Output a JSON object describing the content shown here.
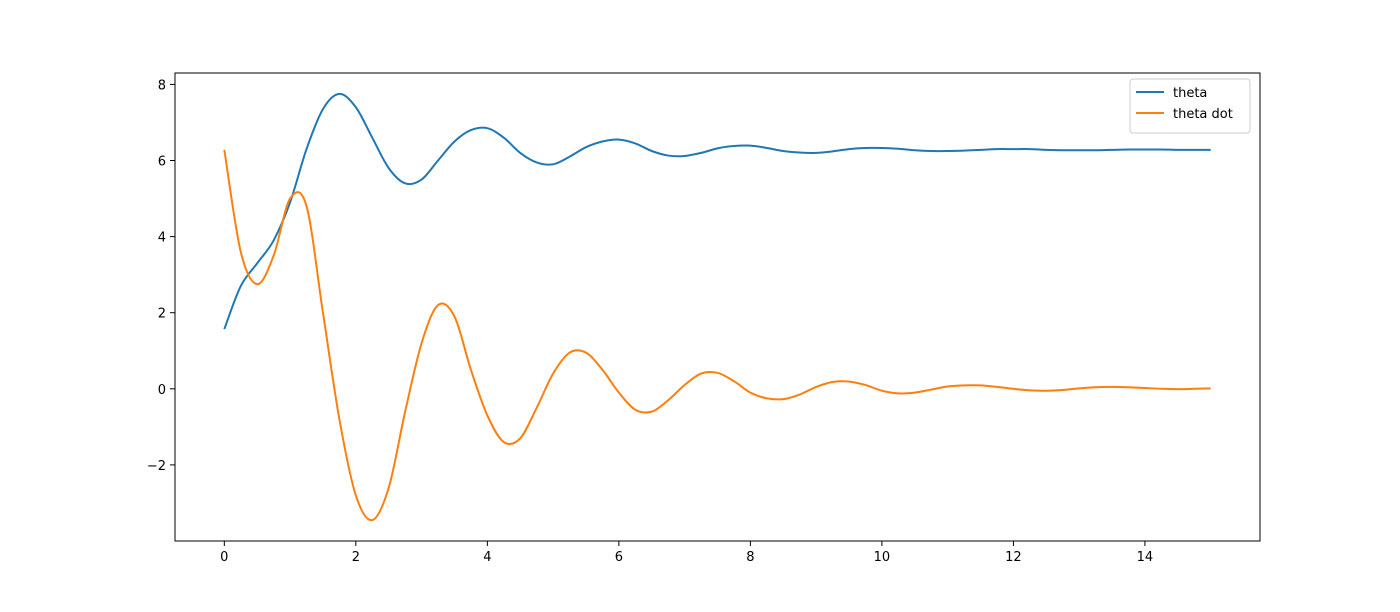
{
  "chart_data": {
    "type": "line",
    "x": [
      0,
      0.25,
      0.5,
      0.75,
      1,
      1.25,
      1.5,
      1.75,
      2,
      2.25,
      2.5,
      2.75,
      3,
      3.25,
      3.5,
      3.75,
      4,
      4.25,
      4.5,
      4.75,
      5,
      5.25,
      5.5,
      5.75,
      6,
      6.25,
      6.5,
      6.75,
      7,
      7.25,
      7.5,
      7.75,
      8,
      8.25,
      8.5,
      8.75,
      9,
      9.25,
      9.5,
      9.75,
      10,
      10.25,
      10.5,
      10.75,
      11,
      11.25,
      11.5,
      11.75,
      12,
      12.25,
      12.5,
      12.75,
      13,
      13.25,
      13.5,
      13.75,
      14,
      14.25,
      14.5,
      14.75,
      15
    ],
    "series": [
      {
        "name": "theta",
        "color": "#1f77b4",
        "values": [
          1.57,
          2.7,
          3.3,
          3.9,
          4.9,
          6.3,
          7.35,
          7.75,
          7.4,
          6.6,
          5.8,
          5.4,
          5.5,
          6.0,
          6.5,
          6.8,
          6.85,
          6.6,
          6.2,
          5.95,
          5.9,
          6.1,
          6.35,
          6.5,
          6.55,
          6.45,
          6.25,
          6.13,
          6.12,
          6.2,
          6.32,
          6.38,
          6.39,
          6.33,
          6.25,
          6.21,
          6.2,
          6.24,
          6.3,
          6.33,
          6.33,
          6.31,
          6.27,
          6.25,
          6.25,
          6.26,
          6.28,
          6.3,
          6.3,
          6.3,
          6.28,
          6.27,
          6.27,
          6.27,
          6.28,
          6.29,
          6.29,
          6.29,
          6.28,
          6.28,
          6.28
        ]
      },
      {
        "name": "theta dot",
        "color": "#ff7f0e",
        "values": [
          6.28,
          3.6,
          2.75,
          3.5,
          5.0,
          4.8,
          2.0,
          -0.8,
          -2.8,
          -3.45,
          -2.6,
          -0.6,
          1.2,
          2.2,
          1.9,
          0.5,
          -0.7,
          -1.4,
          -1.3,
          -0.5,
          0.4,
          0.95,
          0.95,
          0.5,
          -0.1,
          -0.55,
          -0.6,
          -0.3,
          0.1,
          0.4,
          0.42,
          0.2,
          -0.1,
          -0.25,
          -0.27,
          -0.15,
          0.05,
          0.18,
          0.19,
          0.1,
          -0.05,
          -0.12,
          -0.1,
          -0.02,
          0.06,
          0.09,
          0.09,
          0.05,
          0,
          -0.04,
          -0.05,
          -0.03,
          0.01,
          0.04,
          0.05,
          0.04,
          0.02,
          0,
          -0.01,
          0,
          0.01
        ]
      }
    ],
    "xlim": [
      -0.75,
      15.75
    ],
    "ylim": [
      -4.0,
      8.3
    ],
    "xticks": [
      0,
      2,
      4,
      6,
      8,
      10,
      12,
      14
    ],
    "yticks": [
      {
        "value": -2,
        "label": "−2"
      },
      0,
      2,
      4,
      6,
      8
    ],
    "legend": "upper right"
  }
}
